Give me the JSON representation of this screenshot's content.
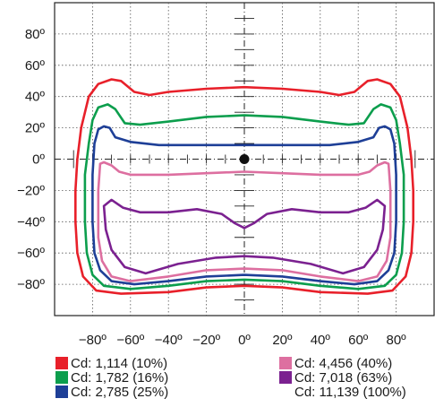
{
  "chart_data": {
    "type": "line",
    "chart_kind": "isocandela-diagram",
    "xlabel": "",
    "ylabel": "",
    "xlim": [
      -100,
      100
    ],
    "ylim": [
      -100,
      100
    ],
    "grid": true,
    "x_ticks": [
      "−80º",
      "−60º",
      "−40º",
      "−20º",
      "0º",
      "20º",
      "40º",
      "60º",
      "80º"
    ],
    "y_ticks": [
      "80º",
      "60º",
      "40º",
      "20º",
      "0º",
      "−20º",
      "−40º",
      "−60º",
      "−80º"
    ],
    "legend_position": "bottom",
    "center_point": {
      "x": 0,
      "y": 0
    },
    "series": [
      {
        "name": "Cd: 1,114 (10%)",
        "color": "#e8202a",
        "points": [
          [
            -77,
            48
          ],
          [
            -70,
            51
          ],
          [
            -65,
            50
          ],
          [
            -58,
            43
          ],
          [
            -50,
            41
          ],
          [
            -40,
            43
          ],
          [
            -20,
            45
          ],
          [
            0,
            46
          ],
          [
            20,
            45
          ],
          [
            40,
            43
          ],
          [
            50,
            41
          ],
          [
            58,
            43
          ],
          [
            65,
            50
          ],
          [
            70,
            51
          ],
          [
            77,
            48
          ],
          [
            82,
            40
          ],
          [
            86,
            20
          ],
          [
            88,
            0
          ],
          [
            89,
            -20
          ],
          [
            89,
            -40
          ],
          [
            88,
            -60
          ],
          [
            85,
            -75
          ],
          [
            78,
            -84
          ],
          [
            65,
            -86
          ],
          [
            40,
            -85
          ],
          [
            20,
            -82
          ],
          [
            0,
            -81
          ],
          [
            -20,
            -82
          ],
          [
            -40,
            -85
          ],
          [
            -65,
            -86
          ],
          [
            -78,
            -84
          ],
          [
            -85,
            -75
          ],
          [
            -88,
            -60
          ],
          [
            -89,
            -40
          ],
          [
            -89,
            -20
          ],
          [
            -88,
            0
          ],
          [
            -86,
            20
          ],
          [
            -82,
            40
          ],
          [
            -77,
            48
          ]
        ]
      },
      {
        "name": "Cd: 1,782 (16%)",
        "color": "#0c9e4d",
        "points": [
          [
            -77,
            33
          ],
          [
            -72,
            35
          ],
          [
            -68,
            32
          ],
          [
            -63,
            23
          ],
          [
            -55,
            22
          ],
          [
            -40,
            24
          ],
          [
            -20,
            27
          ],
          [
            0,
            28
          ],
          [
            20,
            27
          ],
          [
            40,
            24
          ],
          [
            55,
            22
          ],
          [
            63,
            23
          ],
          [
            68,
            32
          ],
          [
            72,
            35
          ],
          [
            77,
            33
          ],
          [
            80,
            25
          ],
          [
            82,
            10
          ],
          [
            84,
            -10
          ],
          [
            84,
            -40
          ],
          [
            83,
            -60
          ],
          [
            80,
            -74
          ],
          [
            74,
            -81
          ],
          [
            60,
            -83
          ],
          [
            40,
            -81
          ],
          [
            20,
            -78
          ],
          [
            0,
            -77
          ],
          [
            -20,
            -78
          ],
          [
            -40,
            -81
          ],
          [
            -60,
            -83
          ],
          [
            -74,
            -81
          ],
          [
            -80,
            -74
          ],
          [
            -83,
            -60
          ],
          [
            -84,
            -40
          ],
          [
            -84,
            -10
          ],
          [
            -82,
            10
          ],
          [
            -80,
            25
          ],
          [
            -77,
            33
          ]
        ]
      },
      {
        "name": "Cd: 2,785 (25%)",
        "color": "#1e3f97",
        "points": [
          [
            -77,
            19
          ],
          [
            -74,
            21
          ],
          [
            -71,
            20
          ],
          [
            -68,
            14
          ],
          [
            -60,
            11
          ],
          [
            -45,
            9
          ],
          [
            -20,
            9
          ],
          [
            0,
            9
          ],
          [
            20,
            9
          ],
          [
            45,
            9
          ],
          [
            60,
            11
          ],
          [
            68,
            14
          ],
          [
            71,
            20
          ],
          [
            74,
            21
          ],
          [
            77,
            19
          ],
          [
            79,
            10
          ],
          [
            80,
            -10
          ],
          [
            80,
            -40
          ],
          [
            79,
            -60
          ],
          [
            76,
            -71
          ],
          [
            70,
            -78
          ],
          [
            58,
            -80
          ],
          [
            40,
            -78
          ],
          [
            20,
            -75
          ],
          [
            0,
            -74
          ],
          [
            -20,
            -75
          ],
          [
            -40,
            -78
          ],
          [
            -58,
            -80
          ],
          [
            -70,
            -78
          ],
          [
            -76,
            -71
          ],
          [
            -79,
            -60
          ],
          [
            -80,
            -40
          ],
          [
            -80,
            -10
          ],
          [
            -79,
            10
          ],
          [
            -77,
            19
          ]
        ]
      },
      {
        "name": "Cd: 4,456 (40%)",
        "color": "#dd6fa0",
        "points": [
          [
            -76,
            -3
          ],
          [
            -74,
            -2
          ],
          [
            -70,
            -4
          ],
          [
            -66,
            -8
          ],
          [
            -60,
            -10
          ],
          [
            -40,
            -10
          ],
          [
            -20,
            -9
          ],
          [
            0,
            -8
          ],
          [
            20,
            -9
          ],
          [
            40,
            -10
          ],
          [
            60,
            -10
          ],
          [
            66,
            -8
          ],
          [
            70,
            -4
          ],
          [
            74,
            -2
          ],
          [
            76,
            -3
          ],
          [
            77,
            -20
          ],
          [
            77,
            -50
          ],
          [
            75,
            -65
          ],
          [
            70,
            -75
          ],
          [
            60,
            -78
          ],
          [
            40,
            -75
          ],
          [
            20,
            -71
          ],
          [
            0,
            -70
          ],
          [
            -20,
            -71
          ],
          [
            -40,
            -75
          ],
          [
            -60,
            -78
          ],
          [
            -70,
            -75
          ],
          [
            -75,
            -65
          ],
          [
            -77,
            -50
          ],
          [
            -77,
            -20
          ],
          [
            -76,
            -3
          ]
        ]
      },
      {
        "name": "Cd: 7,018 (63%)",
        "color": "#7b2190",
        "points": [
          [
            -74,
            -30
          ],
          [
            -70,
            -26
          ],
          [
            -64,
            -31
          ],
          [
            -55,
            -34
          ],
          [
            -40,
            -34
          ],
          [
            -25,
            -32
          ],
          [
            -12,
            -35
          ],
          [
            -5,
            -41
          ],
          [
            0,
            -44
          ],
          [
            5,
            -41
          ],
          [
            12,
            -35
          ],
          [
            25,
            -32
          ],
          [
            40,
            -34
          ],
          [
            55,
            -34
          ],
          [
            64,
            -31
          ],
          [
            70,
            -26
          ],
          [
            74,
            -30
          ],
          [
            73,
            -45
          ],
          [
            70,
            -58
          ],
          [
            63,
            -69
          ],
          [
            52,
            -73
          ],
          [
            35,
            -67
          ],
          [
            15,
            -63
          ],
          [
            0,
            -62
          ],
          [
            -15,
            -63
          ],
          [
            -35,
            -67
          ],
          [
            -52,
            -73
          ],
          [
            -63,
            -69
          ],
          [
            -70,
            -58
          ],
          [
            -73,
            -45
          ],
          [
            -74,
            -30
          ]
        ]
      }
    ],
    "legend": [
      {
        "label": "Cd: 1,114 (10%)",
        "color": "#e8202a"
      },
      {
        "label": "Cd: 1,782 (16%)",
        "color": "#0c9e4d"
      },
      {
        "label": "Cd: 2,785 (25%)",
        "color": "#1e3f97"
      },
      {
        "label": "Cd: 4,456 (40%)",
        "color": "#dd6fa0"
      },
      {
        "label": "Cd: 7,018 (63%)",
        "color": "#7b2190"
      },
      {
        "label": "Cd: 11,139 (100%)",
        "color": null
      }
    ]
  }
}
